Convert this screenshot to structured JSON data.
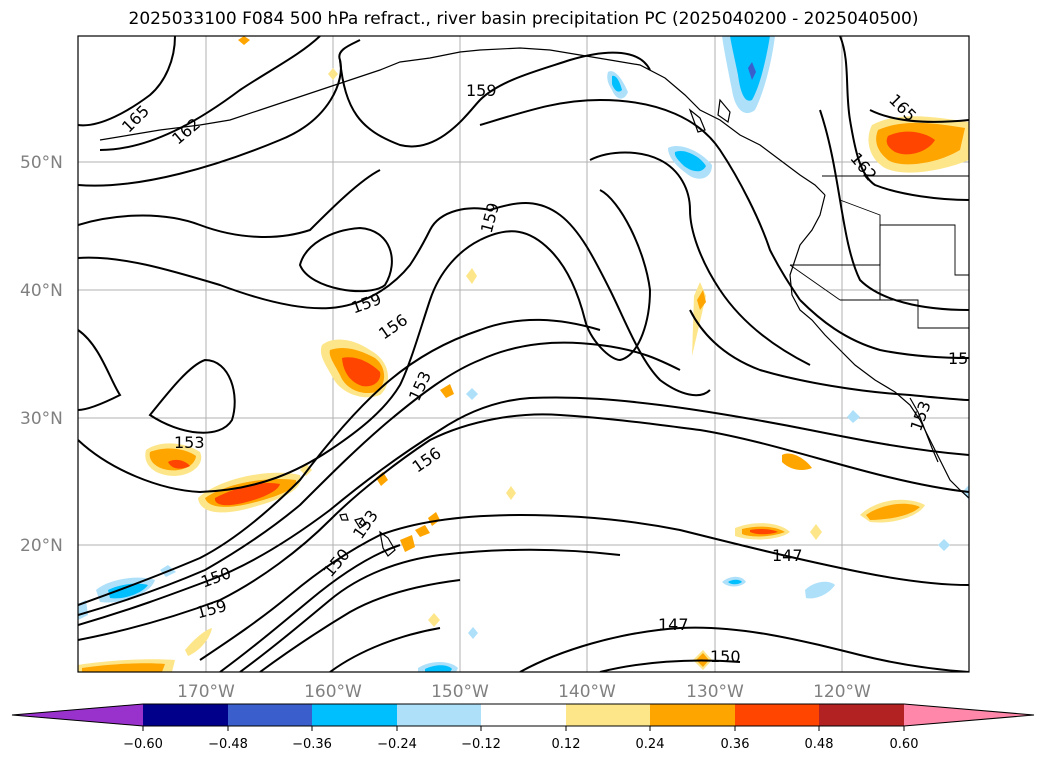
{
  "title": "2025033100 F084 500 hPa refract., river basin precipitation PC (2025040200 - 2025040500)",
  "map": {
    "lat_labels": [
      "50°N",
      "40°N",
      "30°N",
      "20°N"
    ],
    "lon_labels": [
      "170°W",
      "160°W",
      "150°W",
      "140°W",
      "130°W",
      "120°W"
    ],
    "contour_labels": [
      "165",
      "162",
      "159",
      "159",
      "159",
      "156",
      "153",
      "153",
      "156",
      "153",
      "150",
      "150",
      "159",
      "147",
      "147",
      "150",
      "165",
      "162",
      "15",
      "153"
    ]
  },
  "colorbar": {
    "ticks": [
      "−0.60",
      "−0.48",
      "−0.36",
      "−0.24",
      "−0.12",
      "0.12",
      "0.24",
      "0.36",
      "0.48",
      "0.60"
    ],
    "colors": [
      "#9932cc",
      "#00008b",
      "#3a5fcd",
      "#00bfff",
      "#aee0fa",
      "#ffffff",
      "#fde68a",
      "#ffa500",
      "#ff4500",
      "#b22222",
      "#ff88aa"
    ]
  }
}
